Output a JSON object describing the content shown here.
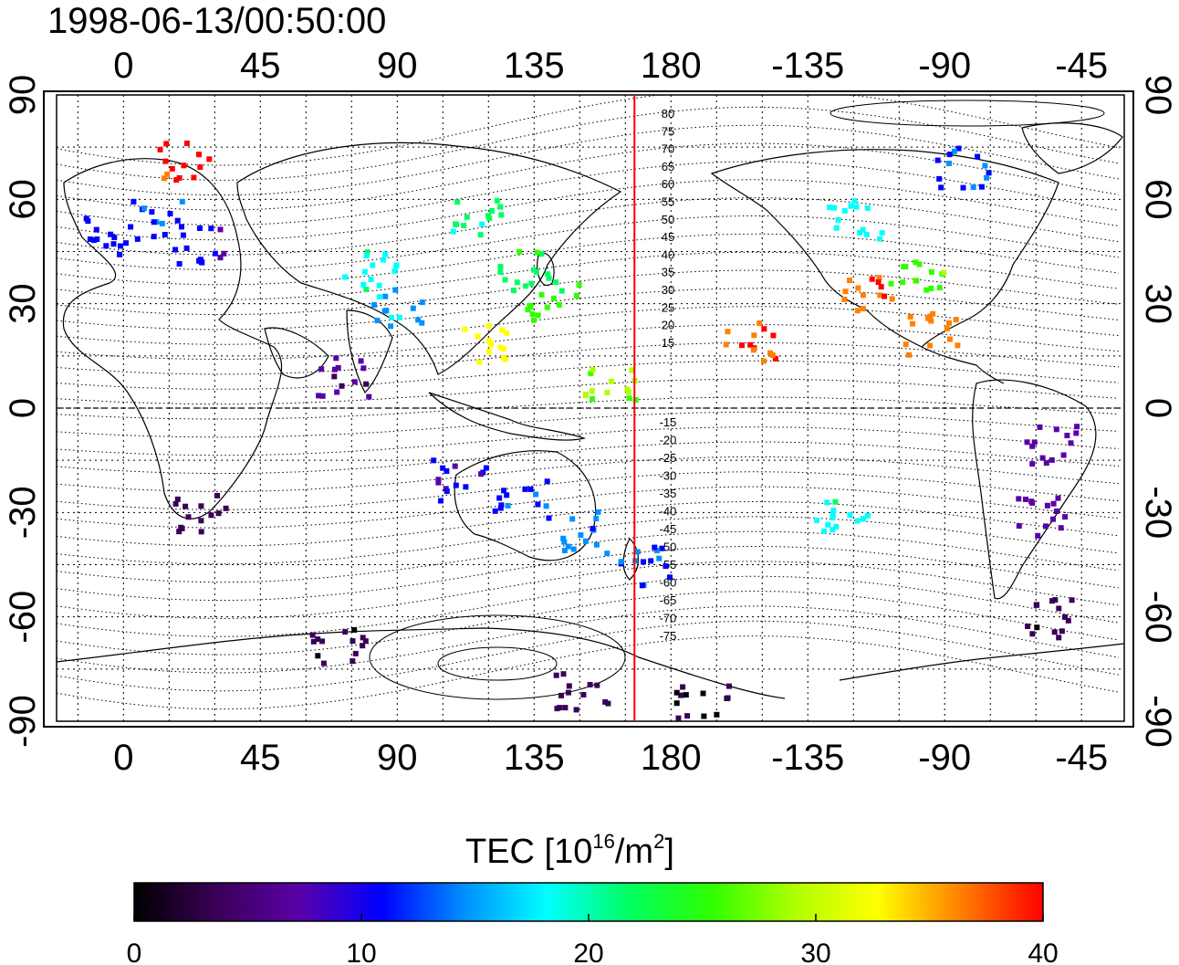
{
  "title": "1998-06-13/00:50:00",
  "axes": {
    "lon_ticks": [
      "0",
      "45",
      "90",
      "135",
      "180",
      "-135",
      "-90",
      "-45"
    ],
    "lat_ticks": [
      "90",
      "60",
      "30",
      "0",
      "-30",
      "-60",
      "-90"
    ]
  },
  "contour_labels": {
    "north": [
      "80",
      "75",
      "70",
      "65",
      "60",
      "55",
      "50",
      "45",
      "40",
      "35",
      "30",
      "25",
      "20",
      "15"
    ],
    "south": [
      "-15",
      "-20",
      "-25",
      "-30",
      "-35",
      "-40",
      "-45",
      "-50",
      "-55",
      "-60",
      "-65",
      "-70",
      "-75"
    ]
  },
  "colorbar": {
    "title": "TEC  [10",
    "title_exp": "16",
    "title_mid": "/m",
    "title_exp2": "2",
    "title_end": "]",
    "min": 0,
    "max": 40,
    "tick_labels": [
      "0",
      "10",
      "20",
      "30",
      "40"
    ],
    "colors": [
      "#000000",
      "#3a0057",
      "#5a00a8",
      "#0000ff",
      "#0090ff",
      "#00ffff",
      "#00ff60",
      "#30ff00",
      "#b0ff00",
      "#ffff00",
      "#ff8000",
      "#ff0000"
    ]
  },
  "meridian_marker": {
    "lon": 168,
    "color": "#ff0000"
  },
  "tec_clusters": [
    {
      "lon": -5,
      "lat": 50,
      "tec": 11
    },
    {
      "lon": 10,
      "lat": 55,
      "tec": 12
    },
    {
      "lon": 25,
      "lat": 48,
      "tec": 10
    },
    {
      "lon": 20,
      "lat": 72,
      "tec": 39
    },
    {
      "lon": 80,
      "lat": 40,
      "tec": 19
    },
    {
      "lon": 90,
      "lat": 30,
      "tec": 16
    },
    {
      "lon": 115,
      "lat": 55,
      "tec": 21
    },
    {
      "lon": 132,
      "lat": 40,
      "tec": 23
    },
    {
      "lon": 140,
      "lat": 32,
      "tec": 25
    },
    {
      "lon": 120,
      "lat": 20,
      "tec": 33
    },
    {
      "lon": 110,
      "lat": -20,
      "tec": 9
    },
    {
      "lon": 130,
      "lat": -25,
      "tec": 12
    },
    {
      "lon": 150,
      "lat": -35,
      "tec": 14
    },
    {
      "lon": 170,
      "lat": -45,
      "tec": 13
    },
    {
      "lon": 160,
      "lat": 8,
      "tec": 28
    },
    {
      "lon": -155,
      "lat": 20,
      "tec": 38
    },
    {
      "lon": -120,
      "lat": 55,
      "tec": 18
    },
    {
      "lon": -100,
      "lat": 40,
      "tec": 26
    },
    {
      "lon": -115,
      "lat": 33,
      "tec": 38
    },
    {
      "lon": -95,
      "lat": 22,
      "tec": 36
    },
    {
      "lon": -85,
      "lat": 70,
      "tec": 12
    },
    {
      "lon": -55,
      "lat": -10,
      "tec": 7
    },
    {
      "lon": -60,
      "lat": -30,
      "tec": 7
    },
    {
      "lon": -55,
      "lat": -60,
      "tec": 3
    },
    {
      "lon": 25,
      "lat": -30,
      "tec": 4
    },
    {
      "lon": 70,
      "lat": -68,
      "tec": 3
    },
    {
      "lon": 150,
      "lat": -80,
      "tec": 4
    },
    {
      "lon": -170,
      "lat": -85,
      "tec": 2
    },
    {
      "lon": 72,
      "lat": 10,
      "tec": 6
    },
    {
      "lon": -125,
      "lat": -30,
      "tec": 19
    }
  ]
}
